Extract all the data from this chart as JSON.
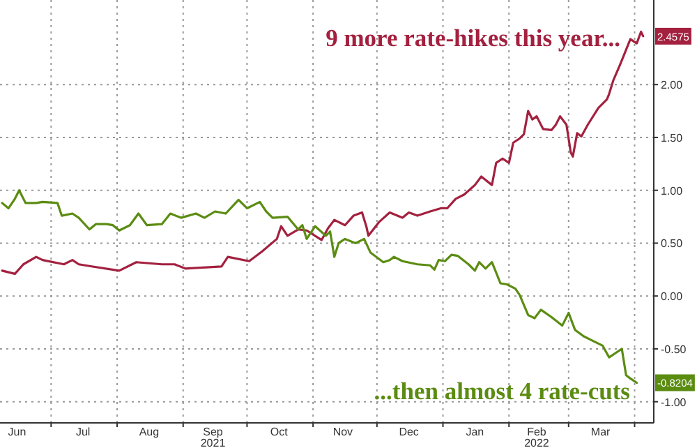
{
  "chart_data": {
    "type": "line",
    "xlim": [
      "2021-06-07",
      "2022-04-10"
    ],
    "xticks": [
      {
        "value": "2021-06-15",
        "label": "Jun"
      },
      {
        "value": "2021-07-01",
        "label": null
      },
      {
        "value": "2021-07-16",
        "label": "Jul"
      },
      {
        "value": "2021-08-01",
        "label": null
      },
      {
        "value": "2021-08-16",
        "label": "Aug"
      },
      {
        "value": "2021-09-01",
        "label": null
      },
      {
        "value": "2021-09-15",
        "label": "Sep\n2021"
      },
      {
        "value": "2021-10-01",
        "label": null
      },
      {
        "value": "2021-10-16",
        "label": "Oct"
      },
      {
        "value": "2021-11-01",
        "label": null
      },
      {
        "value": "2021-11-15",
        "label": "Nov"
      },
      {
        "value": "2021-12-01",
        "label": null
      },
      {
        "value": "2021-12-16",
        "label": "Dec"
      },
      {
        "value": "2022-01-01",
        "label": null
      },
      {
        "value": "2022-01-16",
        "label": "Jan"
      },
      {
        "value": "2022-02-01",
        "label": null
      },
      {
        "value": "2022-02-14",
        "label": "Feb\n2022"
      },
      {
        "value": "2022-03-01",
        "label": null
      },
      {
        "value": "2022-03-16",
        "label": "Mar"
      },
      {
        "value": "2022-04-01",
        "label": null
      }
    ],
    "ylim": [
      -1.2,
      2.8
    ],
    "yticks": [
      {
        "value": -1,
        "label": "-1.00"
      },
      {
        "value": -0.5,
        "label": "-0.50"
      },
      {
        "value": 0,
        "label": "0.00"
      },
      {
        "value": 0.5,
        "label": "0.50"
      },
      {
        "value": 1,
        "label": "1.00"
      },
      {
        "value": 1.5,
        "label": "1.50"
      },
      {
        "value": 2,
        "label": "2.00"
      }
    ],
    "grid": true,
    "legend": "right",
    "series": [
      {
        "name": "9 more rate-hikes this year...",
        "color": "#a3213f",
        "x": [
          "2021-06-08",
          "2021-06-14",
          "2021-06-18",
          "2021-06-24",
          "2021-06-27",
          "2021-07-07",
          "2021-07-11",
          "2021-07-14",
          "2021-07-20",
          "2021-08-02",
          "2021-08-10",
          "2021-08-22",
          "2021-08-28",
          "2021-09-02",
          "2021-09-19",
          "2021-09-22",
          "2021-10-02",
          "2021-10-08",
          "2021-10-15",
          "2021-10-17",
          "2021-10-20",
          "2021-10-25",
          "2021-10-29",
          "2021-11-05",
          "2021-11-08",
          "2021-11-11",
          "2021-11-16",
          "2021-11-20",
          "2021-11-24",
          "2021-11-26",
          "2021-11-27",
          "2021-12-02",
          "2021-12-07",
          "2021-12-13",
          "2021-12-16",
          "2021-12-20",
          "2021-12-26",
          "2021-12-31",
          "2022-01-03",
          "2022-01-07",
          "2022-01-11",
          "2022-01-16",
          "2022-01-19",
          "2022-01-24",
          "2022-01-26",
          "2022-01-29",
          "2022-02-01",
          "2022-02-03",
          "2022-02-06",
          "2022-02-08",
          "2022-02-10",
          "2022-02-12",
          "2022-02-14",
          "2022-02-17",
          "2022-02-21",
          "2022-02-23",
          "2022-02-25",
          "2022-02-28",
          "2022-03-02",
          "2022-03-03",
          "2022-03-05",
          "2022-03-07",
          "2022-03-10",
          "2022-03-15",
          "2022-03-19",
          "2022-03-20",
          "2022-03-22",
          "2022-03-25",
          "2022-03-27",
          "2022-03-30",
          "2022-04-02",
          "2022-04-04",
          "2022-04-05"
        ],
        "values": [
          0.24,
          0.21,
          0.3,
          0.37,
          0.34,
          0.3,
          0.34,
          0.3,
          0.28,
          0.24,
          0.32,
          0.3,
          0.3,
          0.26,
          0.28,
          0.37,
          0.33,
          0.42,
          0.54,
          0.66,
          0.57,
          0.63,
          0.62,
          0.53,
          0.64,
          0.72,
          0.67,
          0.76,
          0.79,
          0.66,
          0.57,
          0.7,
          0.79,
          0.74,
          0.79,
          0.76,
          0.8,
          0.83,
          0.83,
          0.92,
          0.96,
          1.05,
          1.13,
          1.05,
          1.26,
          1.3,
          1.26,
          1.45,
          1.49,
          1.53,
          1.75,
          1.67,
          1.7,
          1.58,
          1.57,
          1.62,
          1.7,
          1.62,
          1.36,
          1.32,
          1.54,
          1.51,
          1.62,
          1.78,
          1.86,
          1.91,
          2.04,
          2.18,
          2.28,
          2.43,
          2.39,
          2.5,
          2.4575
        ]
      },
      {
        "name": "...then almost 4 rate-cuts",
        "color": "#5b8c12",
        "x": [
          "2021-06-08",
          "2021-06-11",
          "2021-06-14",
          "2021-06-16",
          "2021-06-19",
          "2021-06-24",
          "2021-06-27",
          "2021-07-04",
          "2021-07-06",
          "2021-07-11",
          "2021-07-14",
          "2021-07-19",
          "2021-07-22",
          "2021-07-27",
          "2021-07-30",
          "2021-08-02",
          "2021-08-07",
          "2021-08-11",
          "2021-08-15",
          "2021-08-22",
          "2021-08-26",
          "2021-08-31",
          "2021-09-07",
          "2021-09-11",
          "2021-09-16",
          "2021-09-21",
          "2021-09-27",
          "2021-10-01",
          "2021-10-07",
          "2021-10-10",
          "2021-10-13",
          "2021-10-20",
          "2021-10-25",
          "2021-10-27",
          "2021-10-29",
          "2021-11-02",
          "2021-11-07",
          "2021-11-09",
          "2021-11-11",
          "2021-11-13",
          "2021-11-16",
          "2021-11-21",
          "2021-11-25",
          "2021-11-28",
          "2021-12-04",
          "2021-12-07",
          "2021-12-09",
          "2021-12-13",
          "2021-12-20",
          "2021-12-26",
          "2021-12-28",
          "2021-12-30",
          "2022-01-02",
          "2022-01-05",
          "2022-01-08",
          "2022-01-13",
          "2022-01-16",
          "2022-01-18",
          "2022-01-21",
          "2022-01-24",
          "2022-01-28",
          "2022-01-31",
          "2022-02-04",
          "2022-02-06",
          "2022-02-10",
          "2022-02-13",
          "2022-02-16",
          "2022-02-21",
          "2022-02-26",
          "2022-03-01",
          "2022-03-04",
          "2022-03-08",
          "2022-03-12",
          "2022-03-17",
          "2022-03-20",
          "2022-03-23",
          "2022-03-26",
          "2022-03-28",
          "2022-03-30",
          "2022-04-02"
        ],
        "values": [
          0.88,
          0.83,
          0.92,
          1.0,
          0.88,
          0.88,
          0.89,
          0.88,
          0.76,
          0.78,
          0.74,
          0.63,
          0.68,
          0.68,
          0.67,
          0.62,
          0.67,
          0.78,
          0.67,
          0.68,
          0.78,
          0.74,
          0.78,
          0.74,
          0.8,
          0.78,
          0.91,
          0.83,
          0.89,
          0.8,
          0.74,
          0.75,
          0.63,
          0.67,
          0.54,
          0.66,
          0.57,
          0.61,
          0.37,
          0.5,
          0.54,
          0.5,
          0.54,
          0.41,
          0.32,
          0.34,
          0.37,
          0.33,
          0.3,
          0.29,
          0.25,
          0.34,
          0.33,
          0.39,
          0.38,
          0.3,
          0.24,
          0.32,
          0.26,
          0.32,
          0.12,
          0.11,
          0.07,
          0.01,
          -0.18,
          -0.21,
          -0.13,
          -0.2,
          -0.28,
          -0.16,
          -0.32,
          -0.38,
          -0.42,
          -0.47,
          -0.58,
          -0.54,
          -0.5,
          -0.75,
          -0.78,
          -0.8204
        ]
      }
    ],
    "annotations": [
      {
        "text": "2.4575",
        "x": "2022-04-05",
        "y": 2.4575
      },
      {
        "text": "-0.8204",
        "x": "2022-04-02",
        "y": -0.8204
      }
    ]
  }
}
